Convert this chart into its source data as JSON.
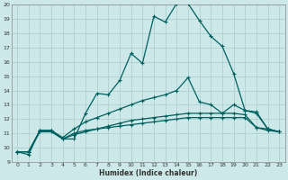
{
  "xlabel": "Humidex (Indice chaleur)",
  "bg_color": "#cce8e8",
  "grid_color": "#aacccc",
  "line_color": "#006060",
  "xlim": [
    -0.5,
    23.5
  ],
  "ylim": [
    9,
    20
  ],
  "xticks": [
    0,
    1,
    2,
    3,
    4,
    5,
    6,
    7,
    8,
    9,
    10,
    11,
    12,
    13,
    14,
    15,
    16,
    17,
    18,
    19,
    20,
    21,
    22,
    23
  ],
  "yticks": [
    9,
    10,
    11,
    12,
    13,
    14,
    15,
    16,
    17,
    18,
    19,
    20
  ],
  "curve1_x": [
    0,
    1,
    2,
    3,
    4,
    5,
    6,
    7,
    8,
    9,
    10,
    11,
    12,
    13,
    14,
    15,
    16,
    17,
    18,
    19,
    20,
    21,
    22,
    23
  ],
  "curve1_y": [
    9.7,
    9.5,
    11.2,
    11.2,
    10.6,
    10.6,
    12.4,
    13.8,
    13.7,
    14.7,
    16.6,
    15.9,
    19.2,
    18.8,
    20.1,
    20.1,
    18.9,
    17.8,
    17.1,
    15.2,
    12.6,
    12.4,
    11.3,
    11.1
  ],
  "curve2_x": [
    0,
    1,
    2,
    3,
    4,
    5,
    6,
    7,
    8,
    9,
    10,
    11,
    12,
    13,
    14,
    15,
    16,
    17,
    18,
    19,
    20,
    21,
    22,
    23
  ],
  "curve2_y": [
    9.7,
    9.7,
    11.2,
    11.2,
    10.7,
    11.3,
    11.8,
    12.1,
    12.4,
    12.7,
    13.0,
    13.3,
    13.5,
    13.7,
    14.0,
    14.9,
    13.2,
    13.0,
    12.4,
    13.0,
    12.6,
    12.5,
    11.3,
    11.1
  ],
  "curve3_x": [
    0,
    1,
    2,
    3,
    4,
    5,
    6,
    7,
    8,
    9,
    10,
    11,
    12,
    13,
    14,
    15,
    16,
    17,
    18,
    19,
    20,
    21,
    22,
    23
  ],
  "curve3_y": [
    9.7,
    9.7,
    11.1,
    11.1,
    10.6,
    11.0,
    11.2,
    11.3,
    11.4,
    11.5,
    11.6,
    11.7,
    11.8,
    11.9,
    12.0,
    12.1,
    12.1,
    12.1,
    12.1,
    12.1,
    12.1,
    11.4,
    11.3,
    11.1
  ],
  "curve4_x": [
    0,
    1,
    2,
    3,
    4,
    5,
    6,
    7,
    8,
    9,
    10,
    11,
    12,
    13,
    14,
    15,
    16,
    17,
    18,
    19,
    20,
    21,
    22,
    23
  ],
  "curve4_y": [
    9.7,
    9.7,
    11.2,
    11.2,
    10.6,
    10.9,
    11.1,
    11.3,
    11.5,
    11.7,
    11.9,
    12.0,
    12.1,
    12.2,
    12.3,
    12.4,
    12.4,
    12.4,
    12.4,
    12.4,
    12.3,
    11.4,
    11.2,
    11.1
  ]
}
